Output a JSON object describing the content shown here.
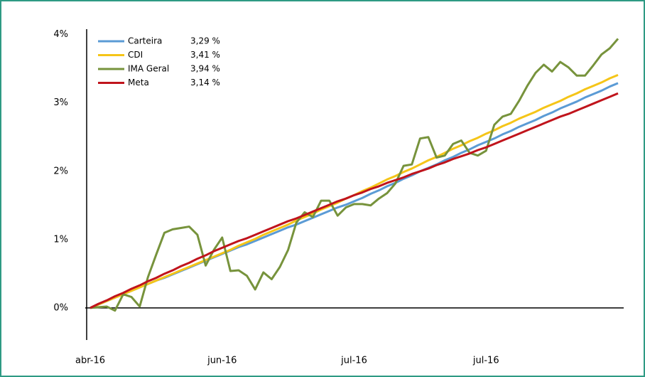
{
  "chart_data": {
    "type": "line",
    "categories": [
      "abr-16",
      null,
      null,
      null,
      null,
      null,
      null,
      null,
      null,
      null,
      null,
      null,
      null,
      null,
      null,
      null,
      "jun-16",
      null,
      null,
      null,
      null,
      null,
      null,
      null,
      null,
      null,
      null,
      null,
      null,
      null,
      null,
      null,
      "jul-16",
      null,
      null,
      null,
      null,
      null,
      null,
      null,
      null,
      null,
      null,
      null,
      null,
      null,
      null,
      null,
      "jul-16",
      null,
      null,
      null,
      null,
      null,
      null,
      null,
      null,
      null,
      null,
      null,
      null,
      null,
      null,
      null,
      null
    ],
    "ylim": [
      -0.47,
      4.08
    ],
    "yticks": [
      {
        "value": 0,
        "label": "0%"
      },
      {
        "value": 1,
        "label": "1%"
      },
      {
        "value": 2,
        "label": "2%"
      },
      {
        "value": 3,
        "label": "3%"
      },
      {
        "value": 4,
        "label": "4%"
      }
    ],
    "grid": false,
    "legend": "top-left",
    "series": [
      {
        "name": "Carteira",
        "legend_label": "3,29 %",
        "color": "#5b9bd5",
        "values": [
          0,
          0.05,
          0.1,
          0.15,
          0.2,
          0.25,
          0.3,
          0.35,
          0.4,
          0.44,
          0.49,
          0.54,
          0.59,
          0.64,
          0.69,
          0.74,
          0.79,
          0.84,
          0.89,
          0.93,
          0.98,
          1.03,
          1.08,
          1.13,
          1.18,
          1.22,
          1.27,
          1.32,
          1.37,
          1.42,
          1.47,
          1.51,
          1.56,
          1.61,
          1.67,
          1.72,
          1.78,
          1.83,
          1.89,
          1.94,
          2.0,
          2.05,
          2.1,
          2.16,
          2.21,
          2.27,
          2.32,
          2.38,
          2.43,
          2.48,
          2.54,
          2.59,
          2.65,
          2.7,
          2.75,
          2.81,
          2.86,
          2.92,
          2.97,
          3.02,
          3.08,
          3.13,
          3.18,
          3.24,
          3.29
        ]
      },
      {
        "name": "CDI",
        "legend_label": "3,41 %",
        "color": "#f5c518",
        "values": [
          0,
          0.05,
          0.1,
          0.15,
          0.2,
          0.25,
          0.3,
          0.35,
          0.4,
          0.45,
          0.5,
          0.55,
          0.6,
          0.65,
          0.7,
          0.75,
          0.8,
          0.85,
          0.91,
          0.96,
          1.01,
          1.07,
          1.12,
          1.17,
          1.22,
          1.28,
          1.33,
          1.38,
          1.44,
          1.49,
          1.54,
          1.6,
          1.65,
          1.71,
          1.76,
          1.82,
          1.88,
          1.93,
          1.99,
          2.04,
          2.1,
          2.16,
          2.21,
          2.27,
          2.33,
          2.38,
          2.44,
          2.49,
          2.55,
          2.6,
          2.66,
          2.71,
          2.77,
          2.82,
          2.87,
          2.93,
          2.98,
          3.03,
          3.09,
          3.14,
          3.2,
          3.25,
          3.3,
          3.36,
          3.41
        ]
      },
      {
        "name": "IMA Geral",
        "legend_label": "3,94 %",
        "color": "#77933c",
        "values": [
          0,
          0.01,
          0.02,
          -0.04,
          0.2,
          0.16,
          0.02,
          0.45,
          0.78,
          1.1,
          1.15,
          1.17,
          1.19,
          1.07,
          0.62,
          0.85,
          1.03,
          0.54,
          0.55,
          0.47,
          0.27,
          0.52,
          0.42,
          0.6,
          0.85,
          1.25,
          1.4,
          1.33,
          1.57,
          1.57,
          1.35,
          1.47,
          1.52,
          1.52,
          1.5,
          1.6,
          1.68,
          1.82,
          2.08,
          2.1,
          2.48,
          2.5,
          2.2,
          2.23,
          2.4,
          2.45,
          2.27,
          2.23,
          2.3,
          2.68,
          2.8,
          2.84,
          3.03,
          3.25,
          3.44,
          3.56,
          3.46,
          3.6,
          3.52,
          3.4,
          3.4,
          3.55,
          3.71,
          3.8,
          3.94
        ]
      },
      {
        "name": "Meta",
        "legend_label": "3,14 %",
        "color": "#c0141c",
        "values": [
          0,
          0.06,
          0.11,
          0.17,
          0.22,
          0.28,
          0.33,
          0.39,
          0.44,
          0.5,
          0.55,
          0.61,
          0.66,
          0.72,
          0.77,
          0.83,
          0.88,
          0.93,
          0.98,
          1.02,
          1.07,
          1.12,
          1.17,
          1.22,
          1.27,
          1.31,
          1.36,
          1.41,
          1.46,
          1.51,
          1.56,
          1.6,
          1.65,
          1.69,
          1.74,
          1.78,
          1.83,
          1.87,
          1.91,
          1.96,
          2.0,
          2.04,
          2.09,
          2.13,
          2.18,
          2.22,
          2.26,
          2.31,
          2.35,
          2.4,
          2.45,
          2.5,
          2.55,
          2.6,
          2.65,
          2.7,
          2.75,
          2.8,
          2.84,
          2.89,
          2.94,
          2.99,
          3.04,
          3.09,
          3.14
        ]
      }
    ]
  }
}
